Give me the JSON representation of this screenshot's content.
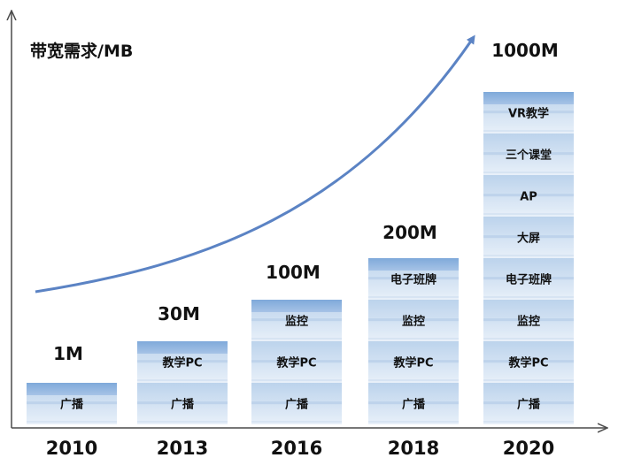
{
  "chart_data": {
    "type": "bar",
    "title": "",
    "ylabel": "带宽需求/MB",
    "xlabel": "",
    "categories": [
      "2010",
      "2013",
      "2016",
      "2018",
      "2020"
    ],
    "totals": [
      "1M",
      "30M",
      "100M",
      "200M",
      "1000M"
    ],
    "stacks": [
      [
        "广播"
      ],
      [
        "广播",
        "教学PC"
      ],
      [
        "广播",
        "教学PC",
        "监控"
      ],
      [
        "广播",
        "教学PC",
        "监控",
        "电子班牌"
      ],
      [
        "广播",
        "教学PC",
        "监控",
        "电子班牌",
        "大屏",
        "AP",
        "三个课堂",
        "VR教学"
      ]
    ],
    "trend": "exponential-arrow",
    "grid": false,
    "legend": "none"
  },
  "colors": {
    "light": "#e6eef8",
    "mid": "#c5d8ee",
    "dark": "#93b6df",
    "band": "#a9c2e0",
    "axis": "#4a4a4a",
    "trend": "#5b83c4"
  }
}
